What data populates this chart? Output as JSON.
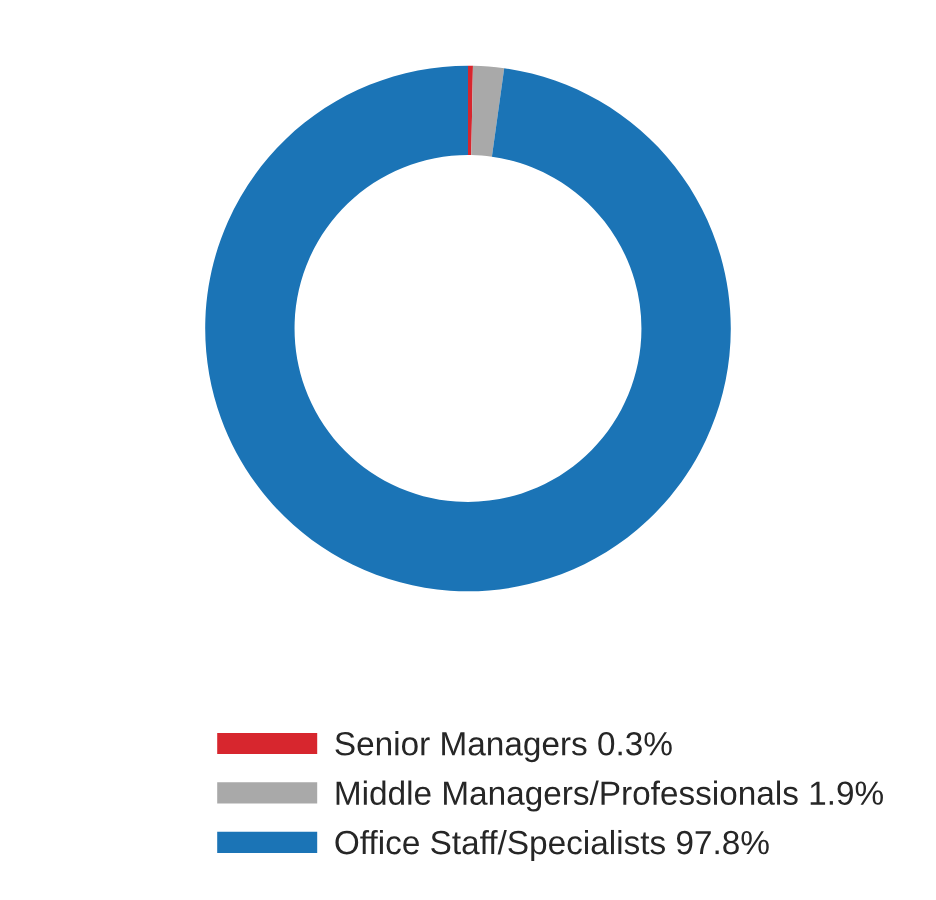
{
  "chart_data": {
    "type": "donut",
    "categories": [
      "Senior Managers 0.3%",
      "Middle Managers/Professionals 1.9%",
      "Office Staff/Specialists 97.8%"
    ],
    "values": [
      0.3,
      1.9,
      97.8
    ],
    "colors": [
      "#d7262e",
      "#a9a9a9",
      "#1b74b6"
    ],
    "legend": "bottom"
  }
}
